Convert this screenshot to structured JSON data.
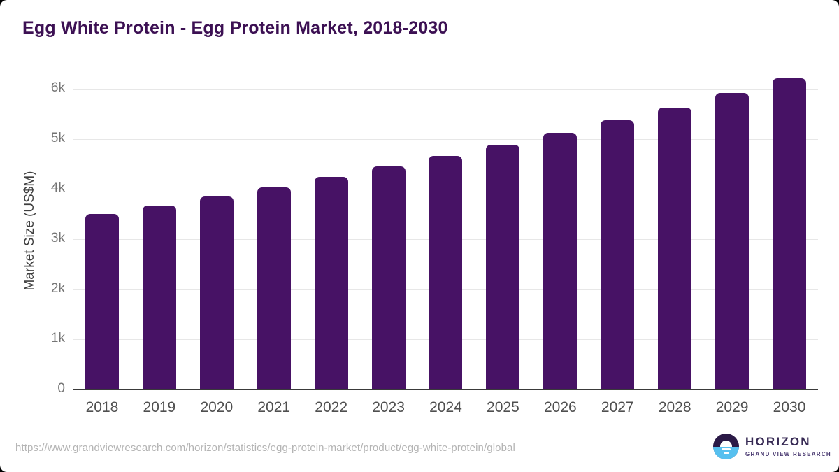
{
  "header": {
    "title": "Egg White Protein - Egg Protein Market, 2018-2030"
  },
  "chart_data": {
    "type": "bar",
    "title": "Egg White Protein - Egg Protein Market, 2018-2030",
    "categories": [
      "2018",
      "2019",
      "2020",
      "2021",
      "2022",
      "2023",
      "2024",
      "2025",
      "2026",
      "2027",
      "2028",
      "2029",
      "2030"
    ],
    "values": [
      3510,
      3680,
      3860,
      4040,
      4250,
      4460,
      4670,
      4900,
      5140,
      5390,
      5640,
      5930,
      6230
    ],
    "xlabel": "",
    "ylabel": "Market Size (US$M)",
    "ylim": [
      0,
      6000
    ],
    "yticks": [
      {
        "label": "0",
        "value": 0
      },
      {
        "label": "1k",
        "value": 1000
      },
      {
        "label": "2k",
        "value": 2000
      },
      {
        "label": "3k",
        "value": 3000
      },
      {
        "label": "4k",
        "value": 4000
      },
      {
        "label": "5k",
        "value": 5000
      },
      {
        "label": "6k",
        "value": 6000
      }
    ],
    "grid": true,
    "legend_position": "none",
    "bar_color": "#471265",
    "gridline_color": "#e7e7e7",
    "baseline_color": "#3a3a3a"
  },
  "footer": {
    "source_url": "https://www.grandviewresearch.com/horizon/statistics/egg-protein-market/product/egg-white-protein/global"
  },
  "branding": {
    "logo_name": "HORIZON",
    "logo_subtitle": "GRAND VIEW RESEARCH",
    "icon_colors": {
      "dark_purple": "#2b1a47",
      "light_blue": "#57c0ef"
    },
    "title_color": "#3c1053"
  }
}
